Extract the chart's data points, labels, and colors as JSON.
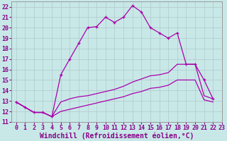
{
  "xlabel": "Windchill (Refroidissement éolien,°C)",
  "ylabel": "",
  "background_color": "#c8e8e8",
  "grid_color": "#b0c8c8",
  "line_color": "#aa00aa",
  "xlim": [
    -0.5,
    23
  ],
  "ylim": [
    11,
    22.5
  ],
  "xticks": [
    0,
    1,
    2,
    3,
    4,
    5,
    6,
    7,
    8,
    9,
    10,
    11,
    12,
    13,
    14,
    15,
    16,
    17,
    18,
    19,
    20,
    21,
    22,
    23
  ],
  "yticks": [
    11,
    12,
    13,
    14,
    15,
    16,
    17,
    18,
    19,
    20,
    21,
    22
  ],
  "line1_x": [
    0,
    1,
    2,
    3,
    4,
    5,
    6,
    7,
    8,
    9,
    10,
    11,
    12,
    13,
    14,
    15,
    16,
    17,
    18,
    19,
    20,
    21,
    22
  ],
  "line1_y": [
    12.9,
    12.4,
    11.9,
    11.9,
    11.5,
    15.5,
    17.0,
    18.5,
    20.0,
    20.1,
    21.0,
    20.5,
    21.0,
    22.1,
    21.5,
    20.0,
    19.5,
    19.0,
    19.5,
    16.5,
    16.5,
    15.0,
    13.2
  ],
  "line2_x": [
    0,
    1,
    2,
    3,
    4,
    5,
    6,
    7,
    8,
    9,
    10,
    11,
    12,
    13,
    14,
    15,
    16,
    17,
    18,
    19,
    20,
    21,
    22
  ],
  "line2_y": [
    12.9,
    12.4,
    11.9,
    11.9,
    11.5,
    12.9,
    13.2,
    13.4,
    13.5,
    13.7,
    13.9,
    14.1,
    14.4,
    14.8,
    15.1,
    15.4,
    15.5,
    15.7,
    16.5,
    16.5,
    16.5,
    13.5,
    13.2
  ],
  "line3_x": [
    0,
    1,
    2,
    3,
    4,
    5,
    6,
    7,
    8,
    9,
    10,
    11,
    12,
    13,
    14,
    15,
    16,
    17,
    18,
    19,
    20,
    21,
    22
  ],
  "line3_y": [
    12.9,
    12.4,
    11.9,
    11.9,
    11.5,
    12.0,
    12.2,
    12.4,
    12.6,
    12.8,
    13.0,
    13.2,
    13.4,
    13.7,
    13.9,
    14.2,
    14.3,
    14.5,
    15.0,
    15.0,
    15.0,
    13.1,
    12.9
  ],
  "tick_fontsize": 6,
  "xlabel_fontsize": 7
}
